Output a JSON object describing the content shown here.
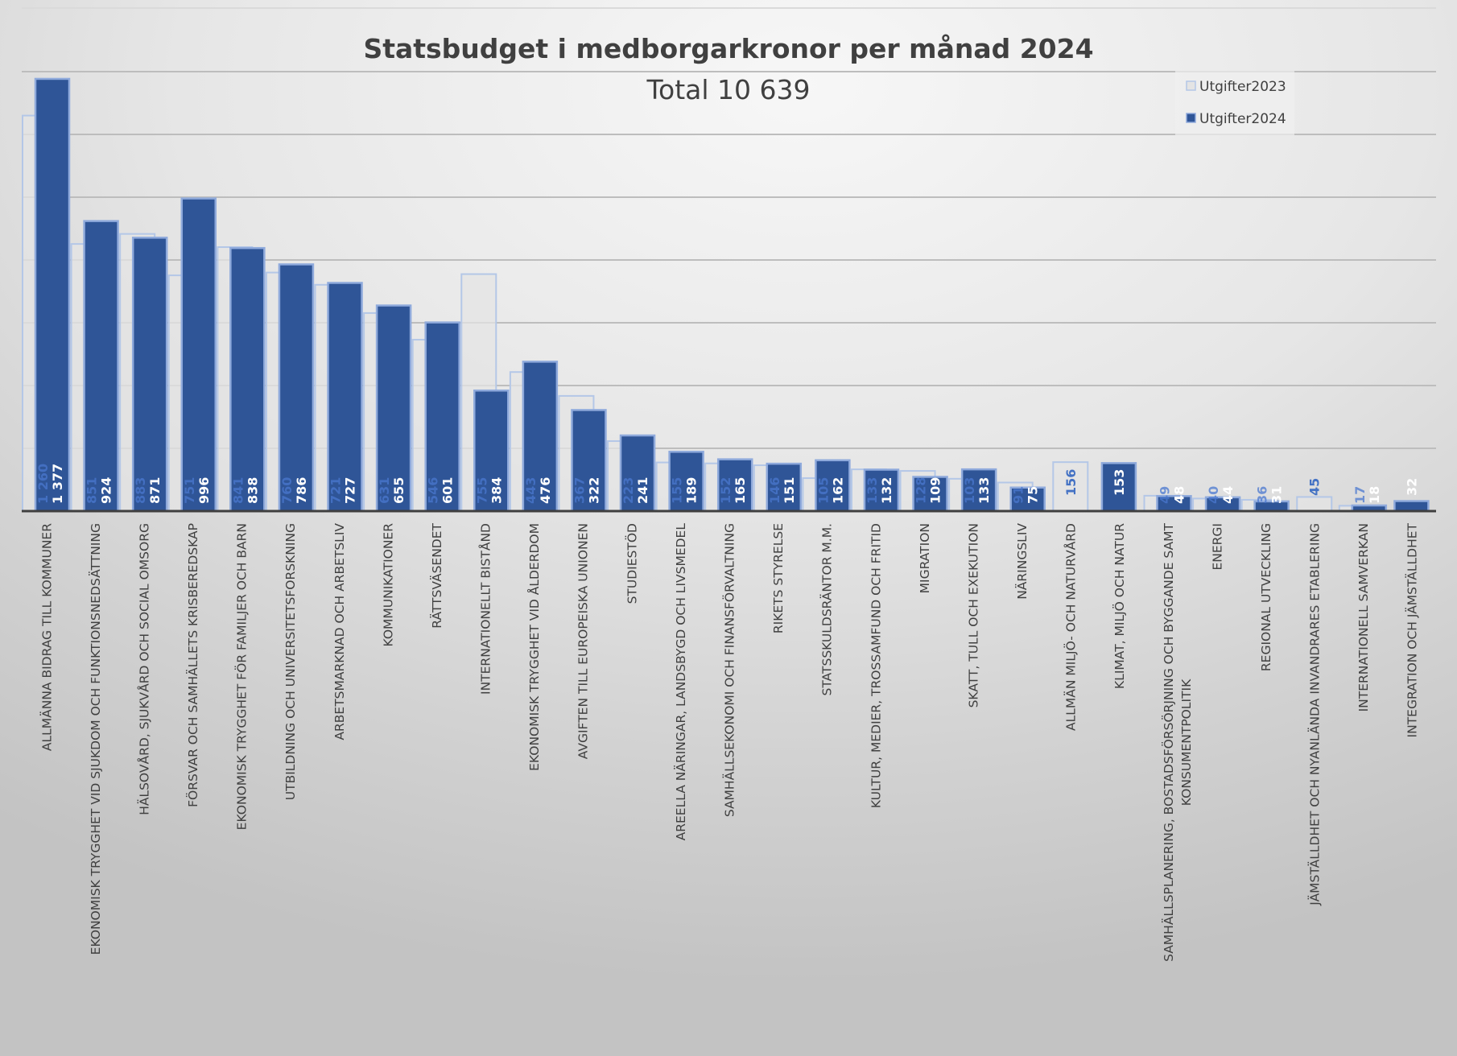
{
  "colors": {
    "series_2024_fill": "#2f5597",
    "series_2024_border": "#8faadc",
    "series_2023_fill": "#e4e4e4",
    "series_2023_border": "#b4c7e7",
    "label_2023": "#4472c4",
    "label_2024": "#ffffff"
  },
  "chart_data": {
    "type": "bar",
    "title": "Statsbudget i medborgarkronor per månad 2024",
    "subtitle": "Total 10 639",
    "xlabel": "",
    "ylabel": "",
    "ylim": [
      0,
      1400
    ],
    "grid": true,
    "grid_step": 200,
    "legend_position": "top-right",
    "categories": [
      "ALLMÄNNA BIDRAG TILL KOMMUNER",
      "EKONOMISK TRYGGHET VID SJUKDOM OCH FUNKTIONSNEDSÄTTNING",
      "HÄLSOVÅRD, SJUKVÅRD OCH SOCIAL OMSORG",
      "FÖRSVAR OCH SAMHÄLLETS KRISBEREDSKAP",
      "EKONOMISK TRYGGHET FÖR FAMILJER OCH BARN",
      "UTBILDNING OCH UNIVERSITETSFORSKNING",
      "ARBETSMARKNAD OCH ARBETSLIV",
      "KOMMUNIKATIONER",
      "RÄTTSVÄSENDET",
      "INTERNATIONELLT BISTÅND",
      "EKONOMISK TRYGGHET VID ÅLDERDOM",
      "AVGIFTEN TILL EUROPEISKA UNIONEN",
      "STUDIESTÖD",
      "AREELLA NÄRINGAR, LANDSBYGD OCH LIVSMEDEL",
      "SAMHÄLLSEKONOMI OCH FINANSFÖRVALTNING",
      "RIKETS STYRELSE",
      "STATSSKULDSRÄNTOR M.M.",
      "KULTUR, MEDIER, TROSSAMFUND OCH FRITID",
      "MIGRATION",
      "SKATT, TULL OCH EXEKUTION",
      "NÄRINGSLIV",
      "ALLMÄN MILJÖ- OCH NATURVÅRD",
      "KLIMAT, MILJÖ OCH NATUR",
      [
        "SAMHÄLLSPLANERING, BOSTADSFÖRSÖRJNING OCH BYGGANDE SAMT",
        "KONSUMENTPOLITIK"
      ],
      "ENERGI",
      "REGIONAL UTVECKLING",
      "JÄMSTÄLLDHET OCH NYANLÄNDA INVANDRARES ETABLERING",
      "INTERNATIONELL SAMVERKAN",
      "INTEGRATION OCH JÄMSTÄLLDHET"
    ],
    "series": [
      {
        "name": "Utgifter2023",
        "values": [
          1260,
          851,
          883,
          751,
          841,
          760,
          721,
          631,
          546,
          755,
          443,
          367,
          223,
          155,
          152,
          146,
          105,
          133,
          128,
          103,
          91,
          156,
          null,
          49,
          40,
          36,
          45,
          17,
          null
        ],
        "labels": [
          "1 260",
          "851",
          "883",
          "751",
          "841",
          "760",
          "721",
          "631",
          "546",
          "755",
          "443",
          "367",
          "223",
          "155",
          "152",
          "146",
          "105",
          "133",
          "128",
          "103",
          "91",
          "156",
          null,
          "49",
          "40",
          "36",
          "45",
          "17",
          null
        ]
      },
      {
        "name": "Utgifter2024",
        "values": [
          1377,
          924,
          871,
          996,
          838,
          786,
          727,
          655,
          601,
          384,
          476,
          322,
          241,
          189,
          165,
          151,
          162,
          132,
          109,
          133,
          75,
          null,
          153,
          48,
          44,
          31,
          null,
          18,
          32
        ],
        "labels": [
          "1 377",
          "924",
          "871",
          "996",
          "838",
          "786",
          "727",
          "655",
          "601",
          "384",
          "476",
          "322",
          "241",
          "189",
          "165",
          "151",
          "162",
          "132",
          "109",
          "133",
          "75",
          null,
          "153",
          "48",
          "44",
          "31",
          null,
          "18",
          "32"
        ]
      }
    ]
  }
}
